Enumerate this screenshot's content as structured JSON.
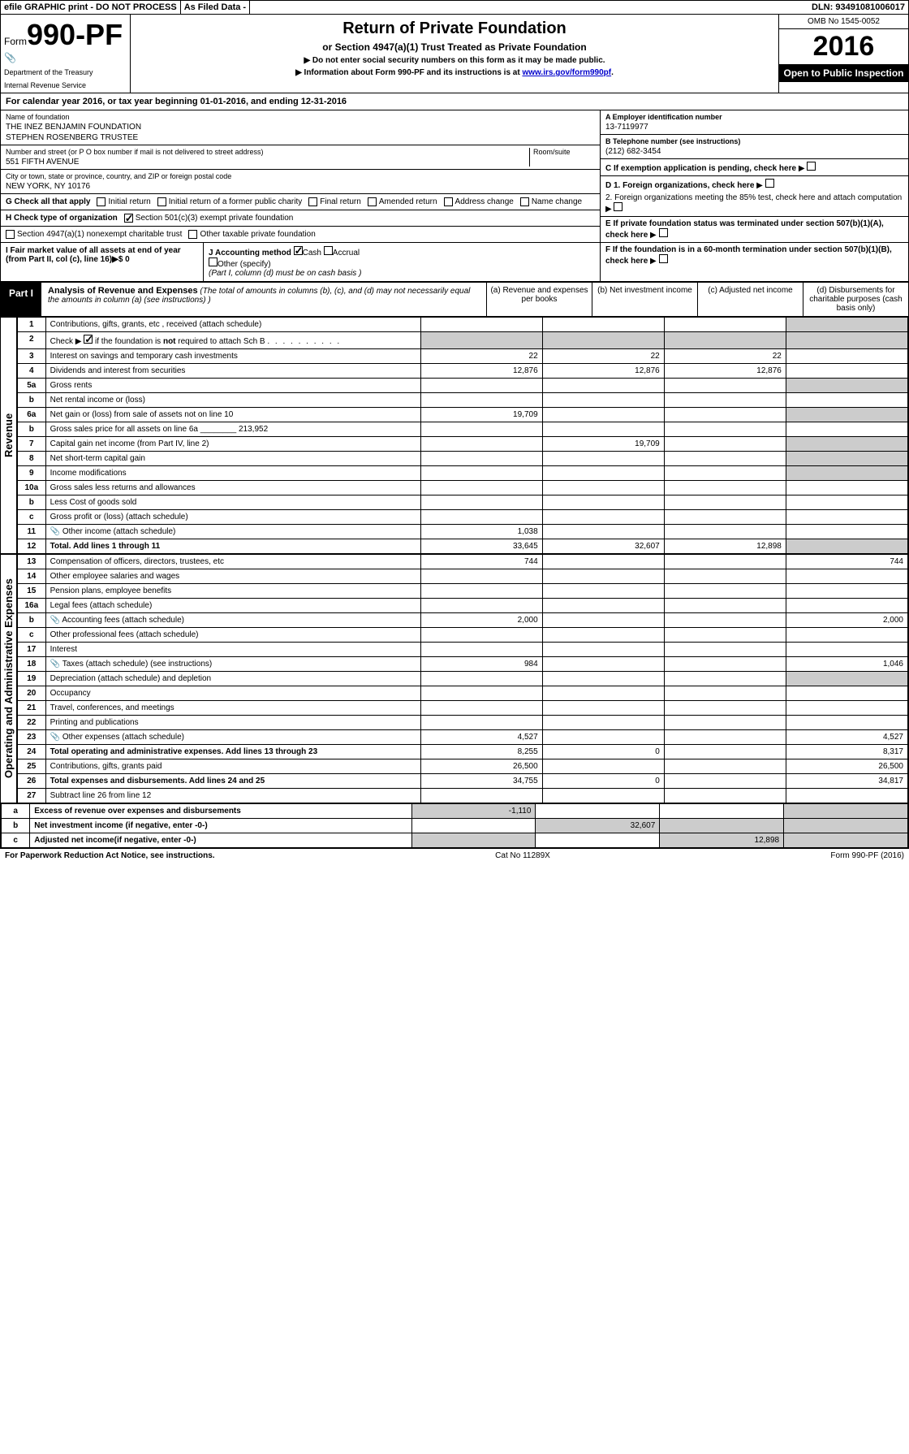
{
  "topBar": {
    "efile": "efile GRAPHIC print - DO NOT PROCESS",
    "asFiled": "As Filed Data -",
    "dln": "DLN: 93491081006017"
  },
  "header": {
    "formWord": "Form",
    "formNum": "990-PF",
    "dept1": "Department of the Treasury",
    "dept2": "Internal Revenue Service",
    "title": "Return of Private Foundation",
    "subtitle": "or Section 4947(a)(1) Trust Treated as Private Foundation",
    "note1": "▶ Do not enter social security numbers on this form as it may be made public.",
    "note2": "▶ Information about Form 990-PF and its instructions is at ",
    "link": "www.irs.gov/form990pf",
    "omb": "OMB No 1545-0052",
    "year": "2016",
    "openPublic": "Open to Public Inspection"
  },
  "calYear": {
    "prefix": "For calendar year 2016, or tax year beginning ",
    "begin": "01-01-2016",
    "mid": ", and ending ",
    "end": "12-31-2016"
  },
  "info": {
    "nameLbl": "Name of foundation",
    "name1": "THE INEZ BENJAMIN FOUNDATION",
    "name2": "STEPHEN ROSENBERG TRUSTEE",
    "addrLbl": "Number and street (or P O box number if mail is not delivered to street address)",
    "addr": "551 FIFTH AVENUE",
    "roomLbl": "Room/suite",
    "cityLbl": "City or town, state or province, country, and ZIP or foreign postal code",
    "city": "NEW YORK, NY 10176",
    "einLbl": "A Employer identification number",
    "ein": "13-7119977",
    "telLbl": "B Telephone number (see instructions)",
    "tel": "(212) 682-3454",
    "cLbl": "C If exemption application is pending, check here",
    "d1": "D 1. Foreign organizations, check here",
    "d2": "2. Foreign organizations meeting the 85% test, check here and attach computation",
    "eLbl": "E If private foundation status was terminated under section 507(b)(1)(A), check here",
    "fLbl": "F If the foundation is in a 60-month termination under section 507(b)(1)(B), check here"
  },
  "checkG": {
    "label": "G Check all that apply",
    "opts": [
      "Initial return",
      "Initial return of a former public charity",
      "Final return",
      "Amended return",
      "Address change",
      "Name change"
    ]
  },
  "checkH": {
    "label": "H Check type of organization",
    "opt1": "Section 501(c)(3) exempt private foundation",
    "opt2": "Section 4947(a)(1) nonexempt charitable trust",
    "opt3": "Other taxable private foundation"
  },
  "sectionI": {
    "label": "I Fair market value of all assets at end of year (from Part II, col (c), line 16)▶$ 0"
  },
  "sectionJ": {
    "label": "J Accounting method",
    "cash": "Cash",
    "accrual": "Accrual",
    "other": "Other (specify)",
    "note": "(Part I, column (d) must be on cash basis )"
  },
  "part1": {
    "label": "Part I",
    "title": "Analysis of Revenue and Expenses",
    "desc": " (The total of amounts in columns (b), (c), and (d) may not necessarily equal the amounts in column (a) (see instructions) )",
    "colA": "(a) Revenue and expenses per books",
    "colB": "(b) Net investment income",
    "colC": "(c) Adjusted net income",
    "colD": "(d) Disbursements for charitable purposes (cash basis only)"
  },
  "sideRevenue": "Revenue",
  "sideExpenses": "Operating and Administrative Expenses",
  "rows": [
    {
      "n": "1",
      "d": "Contributions, gifts, grants, etc , received (attach schedule)",
      "a": "",
      "b": "",
      "c": "",
      "dd": ""
    },
    {
      "n": "2",
      "d": "Check ▶ ☑ if the foundation is not required to attach Sch B",
      "a": "",
      "b": "",
      "c": "",
      "dd": ""
    },
    {
      "n": "3",
      "d": "Interest on savings and temporary cash investments",
      "a": "22",
      "b": "22",
      "c": "22",
      "dd": ""
    },
    {
      "n": "4",
      "d": "Dividends and interest from securities",
      "a": "12,876",
      "b": "12,876",
      "c": "12,876",
      "dd": ""
    },
    {
      "n": "5a",
      "d": "Gross rents",
      "a": "",
      "b": "",
      "c": "",
      "dd": ""
    },
    {
      "n": "b",
      "d": "Net rental income or (loss)",
      "a": "",
      "b": "",
      "c": "",
      "dd": ""
    },
    {
      "n": "6a",
      "d": "Net gain or (loss) from sale of assets not on line 10",
      "a": "19,709",
      "b": "",
      "c": "",
      "dd": ""
    },
    {
      "n": "b",
      "d": "Gross sales price for all assets on line 6a ________ 213,952",
      "a": "",
      "b": "",
      "c": "",
      "dd": ""
    },
    {
      "n": "7",
      "d": "Capital gain net income (from Part IV, line 2)",
      "a": "",
      "b": "19,709",
      "c": "",
      "dd": ""
    },
    {
      "n": "8",
      "d": "Net short-term capital gain",
      "a": "",
      "b": "",
      "c": "",
      "dd": ""
    },
    {
      "n": "9",
      "d": "Income modifications",
      "a": "",
      "b": "",
      "c": "",
      "dd": ""
    },
    {
      "n": "10a",
      "d": "Gross sales less returns and allowances",
      "a": "",
      "b": "",
      "c": "",
      "dd": ""
    },
    {
      "n": "b",
      "d": "Less Cost of goods sold",
      "a": "",
      "b": "",
      "c": "",
      "dd": ""
    },
    {
      "n": "c",
      "d": "Gross profit or (loss) (attach schedule)",
      "a": "",
      "b": "",
      "c": "",
      "dd": ""
    },
    {
      "n": "11",
      "d": "Other income (attach schedule)",
      "a": "1,038",
      "b": "",
      "c": "",
      "dd": "",
      "icon": true
    },
    {
      "n": "12",
      "d": "Total. Add lines 1 through 11",
      "a": "33,645",
      "b": "32,607",
      "c": "12,898",
      "dd": "",
      "bold": true
    },
    {
      "n": "13",
      "d": "Compensation of officers, directors, trustees, etc",
      "a": "744",
      "b": "",
      "c": "",
      "dd": "744"
    },
    {
      "n": "14",
      "d": "Other employee salaries and wages",
      "a": "",
      "b": "",
      "c": "",
      "dd": ""
    },
    {
      "n": "15",
      "d": "Pension plans, employee benefits",
      "a": "",
      "b": "",
      "c": "",
      "dd": ""
    },
    {
      "n": "16a",
      "d": "Legal fees (attach schedule)",
      "a": "",
      "b": "",
      "c": "",
      "dd": ""
    },
    {
      "n": "b",
      "d": "Accounting fees (attach schedule)",
      "a": "2,000",
      "b": "",
      "c": "",
      "dd": "2,000",
      "icon": true
    },
    {
      "n": "c",
      "d": "Other professional fees (attach schedule)",
      "a": "",
      "b": "",
      "c": "",
      "dd": ""
    },
    {
      "n": "17",
      "d": "Interest",
      "a": "",
      "b": "",
      "c": "",
      "dd": ""
    },
    {
      "n": "18",
      "d": "Taxes (attach schedule) (see instructions)",
      "a": "984",
      "b": "",
      "c": "",
      "dd": "1,046",
      "icon": true
    },
    {
      "n": "19",
      "d": "Depreciation (attach schedule) and depletion",
      "a": "",
      "b": "",
      "c": "",
      "dd": ""
    },
    {
      "n": "20",
      "d": "Occupancy",
      "a": "",
      "b": "",
      "c": "",
      "dd": ""
    },
    {
      "n": "21",
      "d": "Travel, conferences, and meetings",
      "a": "",
      "b": "",
      "c": "",
      "dd": ""
    },
    {
      "n": "22",
      "d": "Printing and publications",
      "a": "",
      "b": "",
      "c": "",
      "dd": ""
    },
    {
      "n": "23",
      "d": "Other expenses (attach schedule)",
      "a": "4,527",
      "b": "",
      "c": "",
      "dd": "4,527",
      "icon": true
    },
    {
      "n": "24",
      "d": "Total operating and administrative expenses. Add lines 13 through 23",
      "a": "8,255",
      "b": "0",
      "c": "",
      "dd": "8,317",
      "bold": true
    },
    {
      "n": "25",
      "d": "Contributions, gifts, grants paid",
      "a": "26,500",
      "b": "",
      "c": "",
      "dd": "26,500"
    },
    {
      "n": "26",
      "d": "Total expenses and disbursements. Add lines 24 and 25",
      "a": "34,755",
      "b": "0",
      "c": "",
      "dd": "34,817",
      "bold": true
    },
    {
      "n": "27",
      "d": "Subtract line 26 from line 12",
      "a": "",
      "b": "",
      "c": "",
      "dd": ""
    },
    {
      "n": "a",
      "d": "Excess of revenue over expenses and disbursements",
      "a": "-1,110",
      "b": "",
      "c": "",
      "dd": "",
      "bold": true
    },
    {
      "n": "b",
      "d": "Net investment income (if negative, enter -0-)",
      "a": "",
      "b": "32,607",
      "c": "",
      "dd": "",
      "bold": true
    },
    {
      "n": "c",
      "d": "Adjusted net income(if negative, enter -0-)",
      "a": "",
      "b": "",
      "c": "12,898",
      "dd": "",
      "bold": true
    }
  ],
  "footer": {
    "left": "For Paperwork Reduction Act Notice, see instructions.",
    "mid": "Cat No 11289X",
    "right": "Form 990-PF (2016)"
  },
  "greyMap": {
    "1": [
      "dd"
    ],
    "2": [
      "a",
      "b",
      "c",
      "dd"
    ],
    "5a": [
      "dd"
    ],
    "b_rental": [
      "a",
      "b",
      "c",
      "dd"
    ],
    "6a": [
      "dd"
    ],
    "6b": [
      "a",
      "b",
      "c",
      "dd"
    ],
    "7": [
      "a",
      "dd"
    ],
    "8": [
      "a",
      "dd"
    ],
    "9": [
      "a",
      "dd"
    ],
    "10a": [
      "a",
      "b",
      "c",
      "dd"
    ],
    "10b": [
      "a",
      "b",
      "c",
      "dd"
    ],
    "10c": [
      "dd"
    ],
    "12": [
      "dd"
    ],
    "19": [
      "dd"
    ],
    "27": [
      "a",
      "b",
      "c",
      "dd"
    ],
    "27a": [
      "b",
      "c",
      "dd"
    ],
    "27b": [
      "a",
      "c",
      "dd"
    ],
    "27c": [
      "a",
      "b",
      "dd"
    ]
  }
}
